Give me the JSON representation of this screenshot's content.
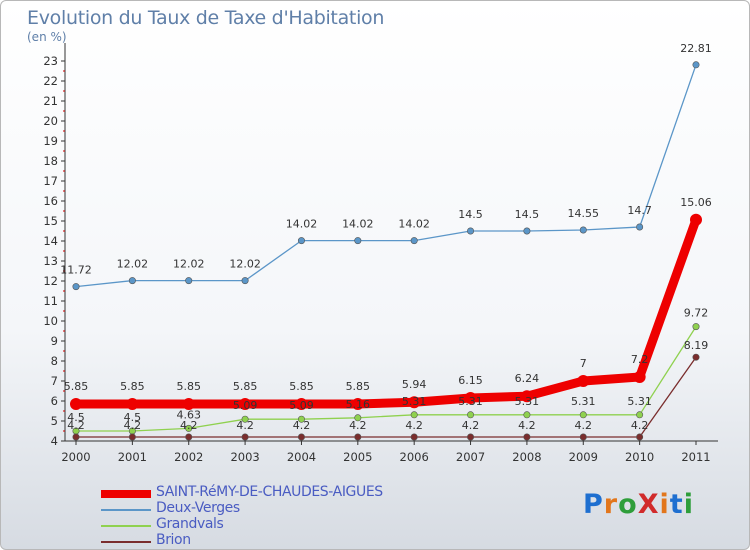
{
  "title": "Evolution du Taux de Taxe d'Habitation",
  "unit": "(en %)",
  "logo": "ProXiti",
  "chart_data": {
    "type": "line",
    "x": [
      "2000",
      "2001",
      "2002",
      "2003",
      "2004",
      "2005",
      "2006",
      "2007",
      "2008",
      "2009",
      "2010",
      "2011"
    ],
    "ylim": [
      4,
      23.5
    ],
    "yticks": [
      4,
      5,
      6,
      7,
      8,
      9,
      10,
      11,
      12,
      13,
      14,
      15,
      16,
      17,
      18,
      19,
      20,
      21,
      22,
      23
    ],
    "grid": false,
    "legend_position": "bottom-left",
    "series": [
      {
        "name": "SAINT-RéMY-DE-CHAUDES-AIGUES",
        "color": "#ee0000",
        "values": [
          5.85,
          5.85,
          5.85,
          5.85,
          5.85,
          5.85,
          5.94,
          6.15,
          6.24,
          7,
          7.2,
          15.06
        ],
        "labels": [
          "5.85",
          "5.85",
          "5.85",
          "5.85",
          "5.85",
          "5.85",
          "5.94",
          "6.15",
          "6.24",
          "7",
          "7.2",
          "15.06"
        ]
      },
      {
        "name": "Deux-Verges",
        "color": "#5b96c8",
        "values": [
          11.72,
          12.02,
          12.02,
          12.02,
          14.02,
          14.02,
          14.02,
          14.5,
          14.5,
          14.55,
          14.7,
          22.81
        ],
        "labels": [
          "11.72",
          "12.02",
          "12.02",
          "12.02",
          "14.02",
          "14.02",
          "14.02",
          "14.5",
          "14.5",
          "14.55",
          "14.7",
          "22.81"
        ]
      },
      {
        "name": "Grandvals",
        "color": "#8fd14f",
        "values": [
          4.5,
          4.5,
          4.63,
          5.09,
          5.09,
          5.16,
          5.31,
          5.31,
          5.31,
          5.31,
          5.31,
          9.72
        ],
        "labels": [
          "4.5",
          "4.5",
          "4.63",
          "5.09",
          "5.09",
          "5.16",
          "5.31",
          "5.31",
          "5.31",
          "5.31",
          "5.31",
          "9.72"
        ]
      },
      {
        "name": "Brion",
        "color": "#7a2d2d",
        "values": [
          4.2,
          4.2,
          4.2,
          4.2,
          4.2,
          4.2,
          4.2,
          4.2,
          4.2,
          4.2,
          4.2,
          8.19
        ],
        "labels": [
          "4.2",
          "4.2",
          "4.2",
          "4.2",
          "4.2",
          "4.2",
          "4.2",
          "4.2",
          "4.2",
          "4.2",
          "4.2",
          "8.19"
        ]
      }
    ]
  }
}
